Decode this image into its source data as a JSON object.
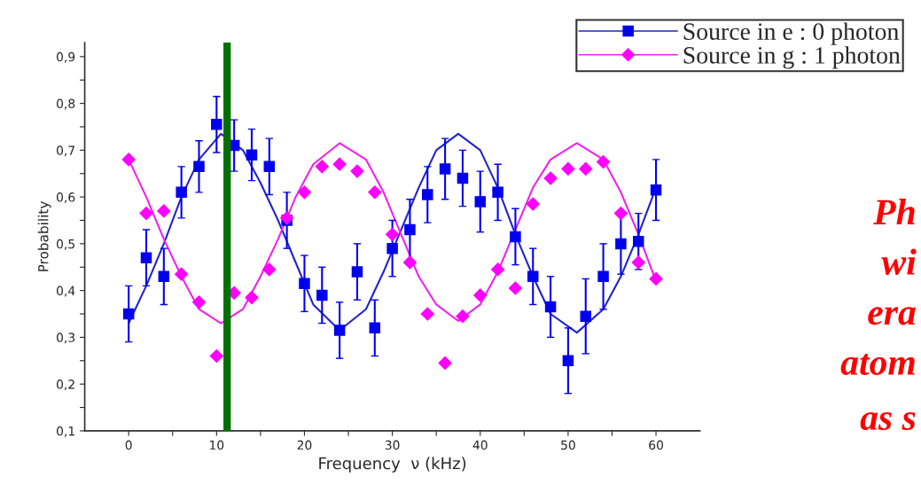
{
  "chart_data": {
    "type": "scatter",
    "xlabel": "Frequency  ν (kHz)",
    "ylabel": "Probability",
    "xlim": [
      -5,
      65
    ],
    "ylim": [
      0.1,
      0.93
    ],
    "xticks": [
      0,
      {
        "value": 5,
        "label": null
      },
      10,
      {
        "value": 15,
        "label": null
      },
      20,
      {
        "value": 25,
        "label": null
      },
      30,
      {
        "value": 35,
        "label": null
      },
      40,
      {
        "value": 45,
        "label": null
      },
      50,
      {
        "value": 55,
        "label": null
      },
      60
    ],
    "yticks": [
      {
        "value": 0.1,
        "label": "0,1"
      },
      {
        "value": 0.15,
        "label": null
      },
      {
        "value": 0.2,
        "label": "0,2"
      },
      {
        "value": 0.25,
        "label": null
      },
      {
        "value": 0.3,
        "label": "0,3"
      },
      {
        "value": 0.35,
        "label": null
      },
      {
        "value": 0.4,
        "label": "0,4"
      },
      {
        "value": 0.45,
        "label": null
      },
      {
        "value": 0.5,
        "label": "0,5"
      },
      {
        "value": 0.55,
        "label": null
      },
      {
        "value": 0.6,
        "label": "0,6"
      },
      {
        "value": 0.65,
        "label": null
      },
      {
        "value": 0.7,
        "label": "0,7"
      },
      {
        "value": 0.75,
        "label": null
      },
      {
        "value": 0.8,
        "label": "0,8"
      },
      {
        "value": 0.85,
        "label": null
      },
      {
        "value": 0.9,
        "label": "0,9"
      }
    ],
    "grid": false,
    "legend": "top right",
    "x": [
      0,
      2,
      4,
      6,
      8,
      10,
      12,
      14,
      16,
      18,
      20,
      22,
      24,
      26,
      28,
      30,
      32,
      34,
      36,
      38,
      40,
      42,
      44,
      46,
      48,
      50,
      52,
      54,
      56,
      58,
      60
    ],
    "series": [
      {
        "name": "Source in e : 0 photon",
        "marker": "square",
        "color": "#0000ee",
        "values": [
          0.35,
          0.47,
          0.43,
          0.61,
          0.665,
          0.755,
          0.71,
          0.69,
          0.665,
          0.55,
          0.415,
          0.39,
          0.315,
          0.44,
          0.32,
          0.49,
          0.53,
          0.605,
          0.66,
          0.64,
          0.59,
          0.61,
          0.515,
          0.43,
          0.365,
          0.25,
          0.345,
          0.43,
          0.5,
          0.505,
          0.615
        ],
        "errors": [
          0.06,
          0.06,
          0.06,
          0.055,
          0.055,
          0.06,
          0.055,
          0.055,
          0.06,
          0.06,
          0.06,
          0.06,
          0.06,
          0.06,
          0.06,
          0.06,
          0.065,
          0.06,
          0.065,
          0.06,
          0.065,
          0.06,
          0.06,
          0.06,
          0.065,
          0.07,
          0.08,
          0.07,
          0.065,
          0.06,
          0.065
        ]
      },
      {
        "name": "Source in g : 1 photon",
        "marker": "diamond",
        "color": "#ff00ff",
        "values": [
          0.68,
          0.565,
          0.57,
          0.435,
          0.375,
          0.26,
          0.395,
          0.385,
          0.445,
          0.555,
          0.61,
          0.665,
          0.67,
          0.655,
          0.61,
          0.52,
          0.46,
          0.35,
          0.245,
          0.345,
          0.39,
          0.445,
          0.405,
          0.585,
          0.64,
          0.66,
          0.66,
          0.675,
          0.565,
          0.46,
          0.425
        ]
      },
      {
        "type": "line",
        "color": "#2222cc",
        "x": [
          0,
          2,
          4,
          6,
          8,
          10.5,
          13,
          15,
          17,
          19,
          21,
          24,
          27,
          29,
          31,
          33,
          35,
          37.5,
          40,
          42,
          44,
          46,
          48,
          51,
          54,
          56,
          58,
          60
        ],
        "values": [
          0.33,
          0.41,
          0.5,
          0.6,
          0.68,
          0.735,
          0.7,
          0.63,
          0.55,
          0.46,
          0.37,
          0.315,
          0.36,
          0.44,
          0.53,
          0.62,
          0.7,
          0.735,
          0.7,
          0.62,
          0.52,
          0.43,
          0.35,
          0.31,
          0.36,
          0.43,
          0.52,
          0.62
        ]
      },
      {
        "type": "line",
        "color": "#ee22ee",
        "x": [
          0,
          2,
          4,
          6,
          8,
          10.5,
          13,
          15,
          17,
          19,
          21,
          24,
          27,
          29,
          31,
          33,
          35,
          37.5,
          40,
          42,
          44,
          46,
          48,
          51,
          54,
          56,
          58,
          60
        ],
        "values": [
          0.68,
          0.6,
          0.51,
          0.43,
          0.36,
          0.33,
          0.36,
          0.43,
          0.51,
          0.6,
          0.67,
          0.715,
          0.68,
          0.61,
          0.52,
          0.43,
          0.37,
          0.335,
          0.37,
          0.44,
          0.53,
          0.62,
          0.68,
          0.715,
          0.68,
          0.61,
          0.52,
          0.42
        ]
      }
    ],
    "ref_lines": [
      {
        "axis": "x",
        "value": 11.2,
        "color": "#007000"
      }
    ],
    "annotations": [
      "Ph",
      "wi",
      "era",
      "atom",
      "as s"
    ]
  }
}
